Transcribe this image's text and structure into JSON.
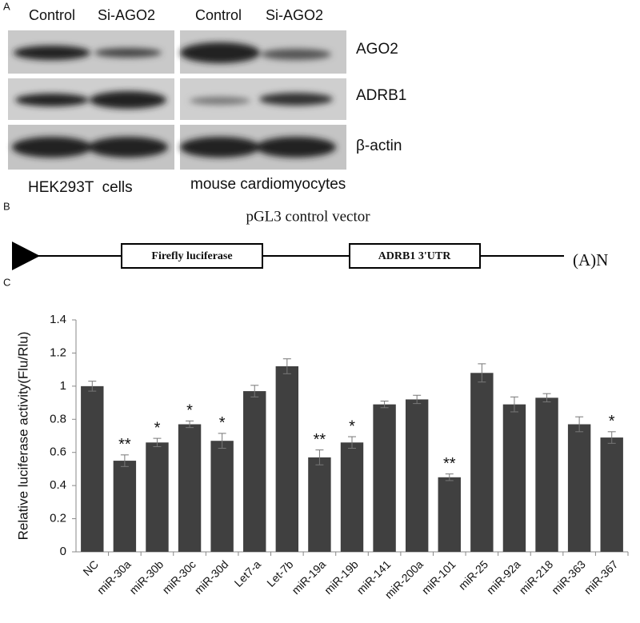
{
  "panel_labels": [
    "A",
    "B",
    "C"
  ],
  "panel_a": {
    "left_columns": [
      "Control",
      "Si-AGO2"
    ],
    "right_columns": [
      "Control",
      "Si-AGO2"
    ],
    "proteins": [
      "AGO2",
      "ADRB1",
      "β-actin"
    ],
    "left_cells": "HEK293T  cells",
    "right_cells": "mouse cardiomyocytes"
  },
  "panel_b": {
    "title": "pGL3 control vector",
    "box1": "Firefly luciferase",
    "box2": "ADRB1 3'UTR",
    "tail": "(A)N"
  },
  "chart_data": {
    "type": "bar",
    "ylabel": "Relative luciferase activity(Flu/Rlu)",
    "categories": [
      "NC",
      "miR-30a",
      "miR-30b",
      "miR-30c",
      "miR-30d",
      "Let7-a",
      "Let-7b",
      "miR-19a",
      "miR-19b",
      "miR-141",
      "miR-200a",
      "miR-101",
      "miR-25",
      "miR-92a",
      "miR-218",
      "miR-363",
      "miR-367"
    ],
    "values": [
      1.0,
      0.55,
      0.66,
      0.77,
      0.67,
      0.97,
      1.12,
      0.57,
      0.66,
      0.89,
      0.92,
      0.45,
      1.08,
      0.89,
      0.93,
      0.77,
      0.69
    ],
    "errors": [
      0.03,
      0.035,
      0.025,
      0.02,
      0.045,
      0.035,
      0.045,
      0.045,
      0.035,
      0.02,
      0.025,
      0.02,
      0.055,
      0.045,
      0.025,
      0.045,
      0.035
    ],
    "annotations": [
      null,
      "**",
      "*",
      "*",
      "*",
      null,
      null,
      "**",
      "*",
      null,
      null,
      "**",
      null,
      null,
      null,
      null,
      "*"
    ],
    "color": "#404040",
    "ylim": [
      0,
      1.4
    ],
    "yticks": [
      0,
      0.2,
      0.4,
      0.6,
      0.8,
      1,
      1.2,
      1.4
    ]
  }
}
